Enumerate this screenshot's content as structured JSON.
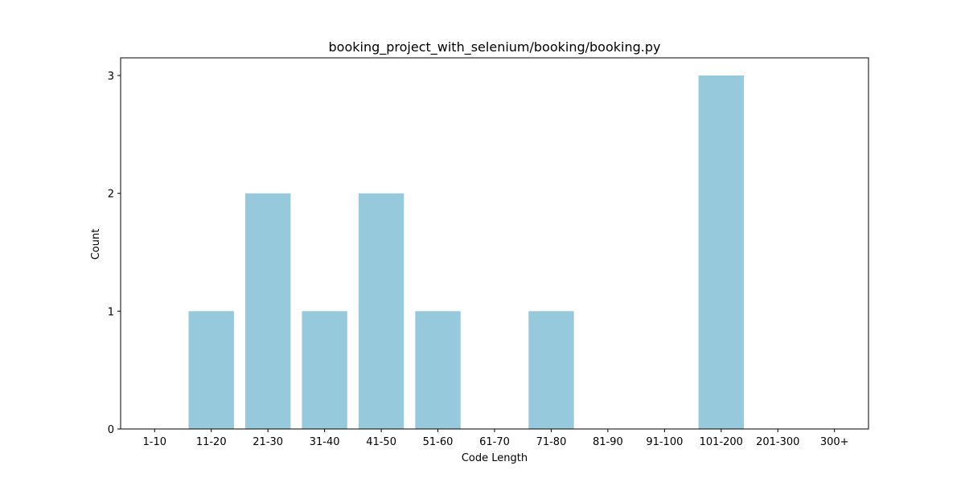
{
  "chart_data": {
    "type": "bar",
    "title": "booking_project_with_selenium/booking/booking.py",
    "xlabel": "Code Length",
    "ylabel": "Count",
    "categories": [
      "1-10",
      "11-20",
      "21-30",
      "31-40",
      "41-50",
      "51-60",
      "61-70",
      "71-80",
      "81-90",
      "91-100",
      "101-200",
      "201-300",
      "300+"
    ],
    "values": [
      0,
      1,
      2,
      1,
      2,
      1,
      0,
      1,
      0,
      0,
      3,
      0,
      0
    ],
    "ylim": [
      0,
      3.15
    ],
    "yticks": [
      0,
      1,
      2,
      3
    ],
    "bar_color": "#96c9dc",
    "grid": false,
    "legend": "none"
  }
}
